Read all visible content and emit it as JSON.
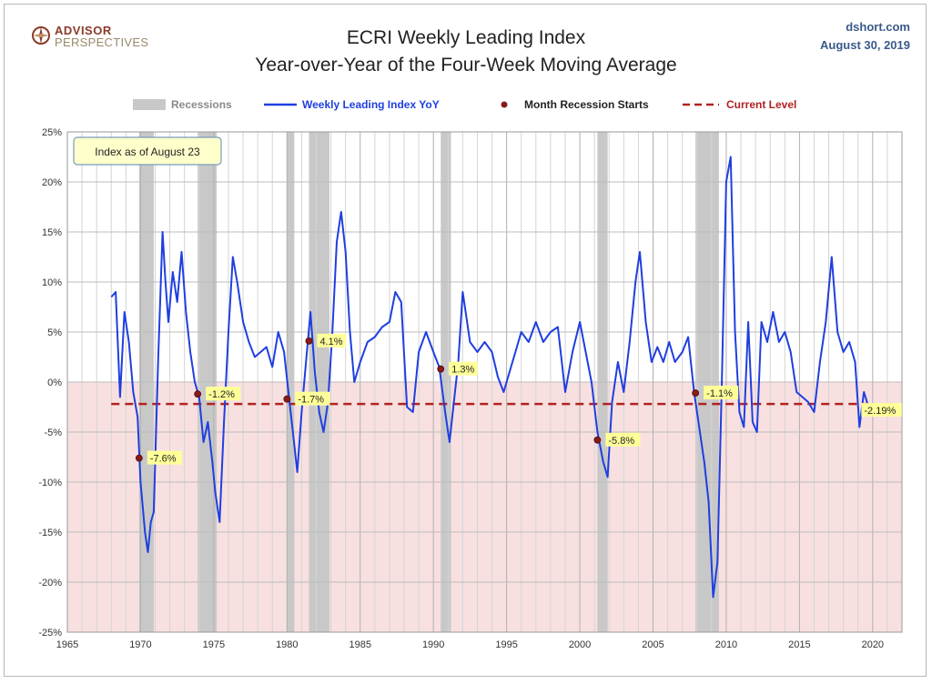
{
  "header": {
    "logo_line1": "ADVISOR",
    "logo_line2": "PERSPECTIVES",
    "source": "dshort.com",
    "date": "August 30, 2019"
  },
  "chart_data": {
    "type": "line",
    "title": "ECRI Weekly Leading Index",
    "subtitle": "Year-over-Year of the Four-Week Moving Average",
    "note": "Index as of August 23",
    "xlim": [
      1965,
      2022
    ],
    "ylim": [
      -25,
      25
    ],
    "grid": true,
    "legend_placement": "top",
    "x_ticks": [
      1965,
      1970,
      1975,
      1980,
      1985,
      1990,
      1995,
      2000,
      2005,
      2010,
      2015,
      2020
    ],
    "y_ticks": [
      {
        "value": 25,
        "label": "25%"
      },
      {
        "value": 20,
        "label": "20%"
      },
      {
        "value": 15,
        "label": "15%"
      },
      {
        "value": 10,
        "label": "10%"
      },
      {
        "value": 5,
        "label": "5%"
      },
      {
        "value": 0,
        "label": "0%"
      },
      {
        "value": -5,
        "label": "-5%"
      },
      {
        "value": -10,
        "label": "-10%"
      },
      {
        "value": -15,
        "label": "-15%"
      },
      {
        "value": -20,
        "label": "-20%"
      },
      {
        "value": -25,
        "label": "-25%"
      }
    ],
    "legend": [
      {
        "label": "Recessions",
        "color": "#c8c8c8"
      },
      {
        "label": "Weekly Leading Index YoY",
        "color": "#1f3fe0"
      },
      {
        "label": "Month Recession Starts",
        "color": "#8b1a1a"
      },
      {
        "label": "Current Level",
        "color": "#b22222"
      }
    ],
    "recessions": [
      [
        1969.9,
        1970.9
      ],
      [
        1973.9,
        1975.2
      ],
      [
        1980.0,
        1980.5
      ],
      [
        1981.5,
        1982.9
      ],
      [
        1990.5,
        1991.2
      ],
      [
        2001.2,
        2001.9
      ],
      [
        2007.9,
        2009.5
      ]
    ],
    "current_level": -2.19,
    "recession_starts": [
      {
        "x": 1969.9,
        "y": -7.6,
        "label": "-7.6%"
      },
      {
        "x": 1973.9,
        "y": -1.2,
        "label": "-1.2%"
      },
      {
        "x": 1980.0,
        "y": -1.7,
        "label": "-1.7%"
      },
      {
        "x": 1981.5,
        "y": 4.1,
        "label": "4.1%"
      },
      {
        "x": 1990.5,
        "y": 1.3,
        "label": "1.3%"
      },
      {
        "x": 2001.2,
        "y": -5.8,
        "label": "-5.8%"
      },
      {
        "x": 2007.9,
        "y": -1.1,
        "label": "-1.1%"
      }
    ],
    "current_label": {
      "x": 2019.6,
      "y": -2.19,
      "label": "-2.19%"
    },
    "series": [
      {
        "name": "Weekly Leading Index YoY",
        "color": "#1f3fe0",
        "x": [
          1968.0,
          1968.3,
          1968.6,
          1968.9,
          1969.2,
          1969.5,
          1969.8,
          1970.0,
          1970.3,
          1970.5,
          1970.7,
          1970.9,
          1971.2,
          1971.5,
          1971.7,
          1971.9,
          1972.2,
          1972.5,
          1972.8,
          1973.1,
          1973.4,
          1973.7,
          1974.0,
          1974.3,
          1974.6,
          1974.9,
          1975.1,
          1975.4,
          1975.7,
          1976.0,
          1976.3,
          1976.6,
          1977.0,
          1977.4,
          1977.8,
          1978.2,
          1978.6,
          1979.0,
          1979.4,
          1979.8,
          1980.1,
          1980.4,
          1980.7,
          1981.0,
          1981.3,
          1981.6,
          1981.9,
          1982.2,
          1982.5,
          1982.8,
          1983.1,
          1983.4,
          1983.7,
          1984.0,
          1984.3,
          1984.6,
          1985.0,
          1985.5,
          1986.0,
          1986.5,
          1987.0,
          1987.4,
          1987.8,
          1988.2,
          1988.6,
          1989.0,
          1989.5,
          1990.0,
          1990.4,
          1990.8,
          1991.1,
          1991.4,
          1991.7,
          1992.0,
          1992.5,
          1993.0,
          1993.5,
          1994.0,
          1994.4,
          1994.8,
          1995.2,
          1995.6,
          1996.0,
          1996.5,
          1997.0,
          1997.5,
          1998.0,
          1998.5,
          1999.0,
          1999.5,
          2000.0,
          2000.4,
          2000.8,
          2001.2,
          2001.6,
          2001.9,
          2002.2,
          2002.6,
          2003.0,
          2003.4,
          2003.8,
          2004.1,
          2004.5,
          2004.9,
          2005.3,
          2005.7,
          2006.1,
          2006.5,
          2007.0,
          2007.4,
          2007.8,
          2008.2,
          2008.5,
          2008.8,
          2009.1,
          2009.4,
          2009.7,
          2010.0,
          2010.3,
          2010.6,
          2010.9,
          2011.2,
          2011.5,
          2011.8,
          2012.1,
          2012.4,
          2012.8,
          2013.2,
          2013.6,
          2014.0,
          2014.4,
          2014.8,
          2015.2,
          2015.6,
          2016.0,
          2016.4,
          2016.8,
          2017.2,
          2017.6,
          2018.0,
          2018.4,
          2018.8,
          2019.1,
          2019.4,
          2019.65
        ],
        "values": [
          8.5,
          9.0,
          -1.5,
          7.0,
          4.0,
          -1.0,
          -3.5,
          -10.0,
          -15.0,
          -17.0,
          -14.0,
          -13.0,
          2.0,
          15.0,
          10.0,
          6.0,
          11.0,
          8.0,
          13.0,
          7.0,
          3.0,
          0.0,
          -1.5,
          -6.0,
          -4.0,
          -8.0,
          -11.0,
          -14.0,
          -4.0,
          5.0,
          12.5,
          10.0,
          6.0,
          4.0,
          2.5,
          3.0,
          3.5,
          1.5,
          5.0,
          3.0,
          -1.0,
          -5.0,
          -9.0,
          -3.0,
          2.0,
          7.0,
          1.0,
          -3.0,
          -5.0,
          -2.0,
          5.0,
          14.0,
          17.0,
          13.0,
          5.0,
          0.0,
          2.0,
          4.0,
          4.5,
          5.5,
          6.0,
          9.0,
          8.0,
          -2.5,
          -3.0,
          3.0,
          5.0,
          3.0,
          1.5,
          -3.0,
          -6.0,
          -2.0,
          2.0,
          9.0,
          4.0,
          3.0,
          4.0,
          3.0,
          0.5,
          -1.0,
          1.0,
          3.0,
          5.0,
          4.0,
          6.0,
          4.0,
          5.0,
          5.5,
          -1.0,
          3.0,
          6.0,
          3.0,
          0.0,
          -5.0,
          -8.0,
          -9.5,
          -2.0,
          2.0,
          -1.0,
          4.0,
          10.0,
          13.0,
          6.0,
          2.0,
          3.5,
          2.0,
          4.0,
          2.0,
          3.0,
          4.5,
          -1.0,
          -5.0,
          -8.0,
          -12.0,
          -21.5,
          -18.0,
          0.0,
          20.0,
          22.5,
          5.0,
          -3.0,
          -4.5,
          6.0,
          -4.0,
          -5.0,
          6.0,
          4.0,
          7.0,
          4.0,
          5.0,
          3.0,
          -1.0,
          -1.5,
          -2.0,
          -3.0,
          2.0,
          6.0,
          12.5,
          5.0,
          3.0,
          4.0,
          2.0,
          -4.5,
          -1.0,
          -2.19
        ]
      }
    ]
  }
}
